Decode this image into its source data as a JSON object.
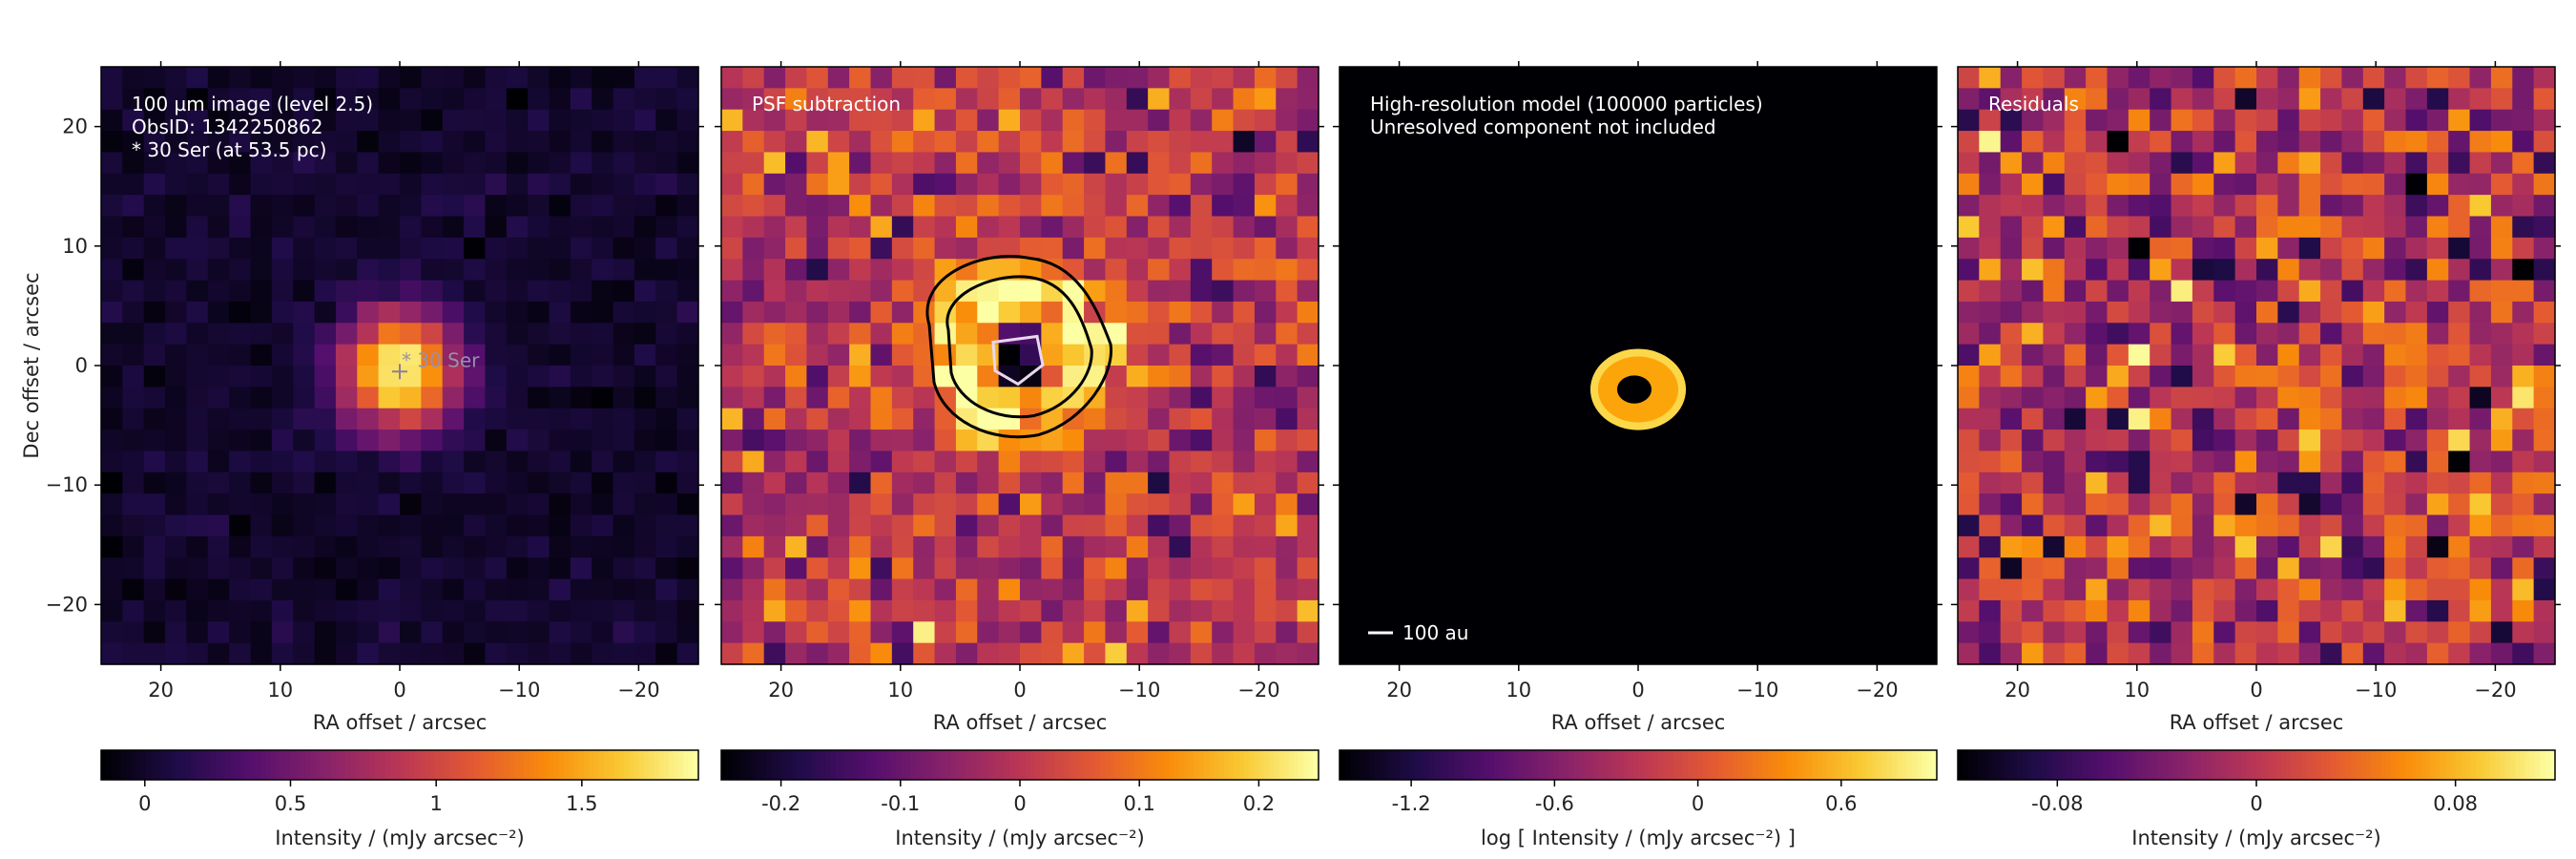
{
  "chart_data": [
    {
      "type": "heatmap",
      "panel": "observed-image",
      "annotations": [
        "100 µm image (level 2.5)",
        "ObsID: 1342250862",
        "* 30 Ser (at 53.5 pc)"
      ],
      "star_label": "30 Ser",
      "xlabel": "RA offset / arcsec",
      "ylabel": "Dec offset / arcsec",
      "xlim": [
        25,
        -25
      ],
      "ylim": [
        -25,
        25
      ],
      "xticks": [
        {
          "v": 20,
          "t": "20"
        },
        {
          "v": 10,
          "t": "10"
        },
        {
          "v": 0,
          "t": "0"
        },
        {
          "v": -10,
          "t": "−10"
        },
        {
          "v": -20,
          "t": "−20"
        }
      ],
      "yticks": [
        {
          "v": 20,
          "t": "20"
        },
        {
          "v": 10,
          "t": "10"
        },
        {
          "v": 0,
          "t": "0"
        },
        {
          "v": -10,
          "t": "−10"
        },
        {
          "v": -20,
          "t": "−20"
        }
      ],
      "source": {
        "x": 0,
        "y": -0.5,
        "amplitude": 1.95,
        "fwhm": 8.0
      },
      "colorbar": {
        "label": "Intensity / (mJy arcsec⁻²)",
        "vmin": -0.15,
        "vmax": 1.9,
        "ticks": [
          {
            "v": 0,
            "t": "0"
          },
          {
            "v": 0.5,
            "t": "0.5"
          },
          {
            "v": 1,
            "t": "1"
          },
          {
            "v": 1.5,
            "t": "1.5"
          }
        ]
      }
    },
    {
      "type": "heatmap",
      "panel": "psf-subtraction",
      "annotations": [
        "PSF subtraction"
      ],
      "xlabel": "RA offset / arcsec",
      "xlim": [
        25,
        -25
      ],
      "ylim": [
        -25,
        25
      ],
      "xticks": [
        {
          "v": 20,
          "t": "20"
        },
        {
          "v": 10,
          "t": "10"
        },
        {
          "v": 0,
          "t": "0"
        },
        {
          "v": -10,
          "t": "−10"
        },
        {
          "v": -20,
          "t": "−20"
        }
      ],
      "ring": {
        "x": 0,
        "y": 1,
        "radius": 5.5,
        "amplitude": 0.22
      },
      "colorbar": {
        "label": "Intensity / (mJy arcsec⁻²)",
        "vmin": -0.25,
        "vmax": 0.25,
        "ticks": [
          {
            "v": -0.2,
            "t": "-0.2"
          },
          {
            "v": -0.1,
            "t": "-0.1"
          },
          {
            "v": 0,
            "t": "0"
          },
          {
            "v": 0.1,
            "t": "0.1"
          },
          {
            "v": 0.2,
            "t": "0.2"
          }
        ]
      }
    },
    {
      "type": "heatmap",
      "panel": "model",
      "annotations": [
        "High-resolution model (100000 particles)",
        "Unresolved component not included"
      ],
      "scalebar_label": "100 au",
      "xlabel": "RA offset / arcsec",
      "xlim": [
        25,
        -25
      ],
      "ylim": [
        -25,
        25
      ],
      "xticks": [
        {
          "v": 20,
          "t": "20"
        },
        {
          "v": 10,
          "t": "10"
        },
        {
          "v": 0,
          "t": "0"
        },
        {
          "v": -10,
          "t": "−10"
        },
        {
          "v": -20,
          "t": "−20"
        }
      ],
      "disk": {
        "x": 0,
        "y": -2,
        "rx": 3.2,
        "ry": 2.6
      },
      "colorbar": {
        "label": "log [ Intensity / (mJy arcsec⁻²) ]",
        "vmin": -1.5,
        "vmax": 1.0,
        "ticks": [
          {
            "v": -1.2,
            "t": "-1.2"
          },
          {
            "v": -0.6,
            "t": "-0.6"
          },
          {
            "v": 0,
            "t": "0"
          },
          {
            "v": 0.6,
            "t": "0.6"
          }
        ]
      }
    },
    {
      "type": "heatmap",
      "panel": "residuals",
      "annotations": [
        "Residuals"
      ],
      "xlabel": "RA offset / arcsec",
      "xlim": [
        25,
        -25
      ],
      "ylim": [
        -25,
        25
      ],
      "xticks": [
        {
          "v": 20,
          "t": "20"
        },
        {
          "v": 10,
          "t": "10"
        },
        {
          "v": 0,
          "t": "0"
        },
        {
          "v": -10,
          "t": "−10"
        },
        {
          "v": -20,
          "t": "−20"
        }
      ],
      "colorbar": {
        "label": "Intensity / (mJy arcsec⁻²)",
        "vmin": -0.12,
        "vmax": 0.12,
        "ticks": [
          {
            "v": -0.08,
            "t": "-0.08"
          },
          {
            "v": 0,
            "t": "0"
          },
          {
            "v": 0.08,
            "t": "0.08"
          }
        ]
      }
    }
  ],
  "colormap": "inferno"
}
